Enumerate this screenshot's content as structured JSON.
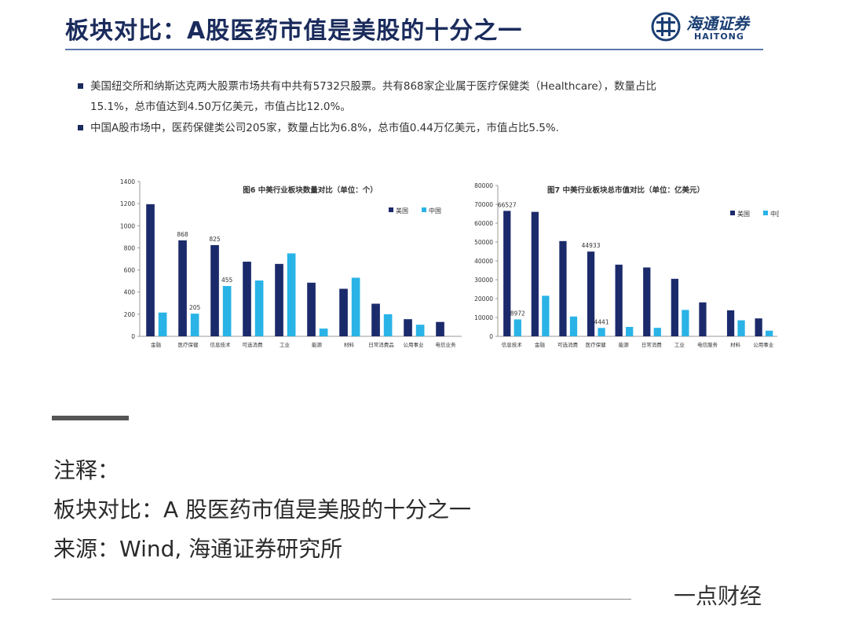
{
  "slide": {
    "title": "板块对比：A股医药市值是美股的十分之一",
    "logo_cn": "海通证券",
    "logo_en": "HAITONG",
    "bullets": [
      "美国纽交所和纳斯达克两大股票市场共有中共有5732只股票。共有868家企业属于医疗保健类（Healthcare），数量占比",
      "15.1%，总市值达到4.50万亿美元，市值占比12.0%。",
      "中国A股市场中，医药保健类公司205家，数量占比为6.8%，总市值0.44万亿美元，市值占比5.5%."
    ]
  },
  "colors": {
    "us": "#1b2a6b",
    "cn": "#29b3e6",
    "title": "#1a2b5c"
  },
  "chart_data": [
    {
      "type": "bar",
      "title": "图6 中美行业板块数量对比（单位：个）",
      "categories": [
        "金融",
        "医疗保健",
        "信息技术",
        "可选消费",
        "工业",
        "能源",
        "材料",
        "日常消费品",
        "公用事业",
        "电信业务"
      ],
      "series": [
        {
          "name": "美国",
          "values": [
            1195,
            868,
            825,
            675,
            655,
            485,
            430,
            295,
            155,
            130
          ]
        },
        {
          "name": "中国",
          "values": [
            215,
            205,
            455,
            505,
            750,
            70,
            530,
            200,
            105,
            0
          ]
        }
      ],
      "data_labels": [
        {
          "series": 0,
          "index": 1,
          "text": "868"
        },
        {
          "series": 0,
          "index": 2,
          "text": "825"
        },
        {
          "series": 1,
          "index": 1,
          "text": "205"
        },
        {
          "series": 1,
          "index": 2,
          "text": "455"
        }
      ],
      "ylim": [
        0,
        1400
      ],
      "yticks": [
        0,
        200,
        400,
        600,
        800,
        1000,
        1200,
        1400
      ],
      "legend": "top-right"
    },
    {
      "type": "bar",
      "title": "图7 中美行业板块总市值对比（单位：亿美元）",
      "categories": [
        "信息技术",
        "金融",
        "可选消费",
        "医疗保健",
        "能源",
        "日常消费",
        "工业",
        "电信服务",
        "材料",
        "公用事业"
      ],
      "series": [
        {
          "name": "美国",
          "values": [
            66527,
            66000,
            50500,
            44933,
            38000,
            36500,
            30500,
            18000,
            13800,
            9500
          ]
        },
        {
          "name": "中国",
          "values": [
            8972,
            21500,
            10500,
            4441,
            5000,
            4500,
            14000,
            0,
            8500,
            3000
          ]
        }
      ],
      "data_labels": [
        {
          "series": 0,
          "index": 0,
          "text": "66527"
        },
        {
          "series": 0,
          "index": 3,
          "text": "44933"
        },
        {
          "series": 1,
          "index": 0,
          "text": "8972"
        },
        {
          "series": 1,
          "index": 3,
          "text": "4441"
        }
      ],
      "ylim": [
        0,
        80000
      ],
      "yticks": [
        0,
        10000,
        20000,
        30000,
        40000,
        50000,
        60000,
        70000,
        80000
      ],
      "legend": "top-right"
    }
  ],
  "notes": {
    "heading": "注释：",
    "line1": "板块对比：A 股医药市值是美股的十分之一",
    "line2": "来源：Wind, 海通证券研究所"
  },
  "brand": "一点财经"
}
